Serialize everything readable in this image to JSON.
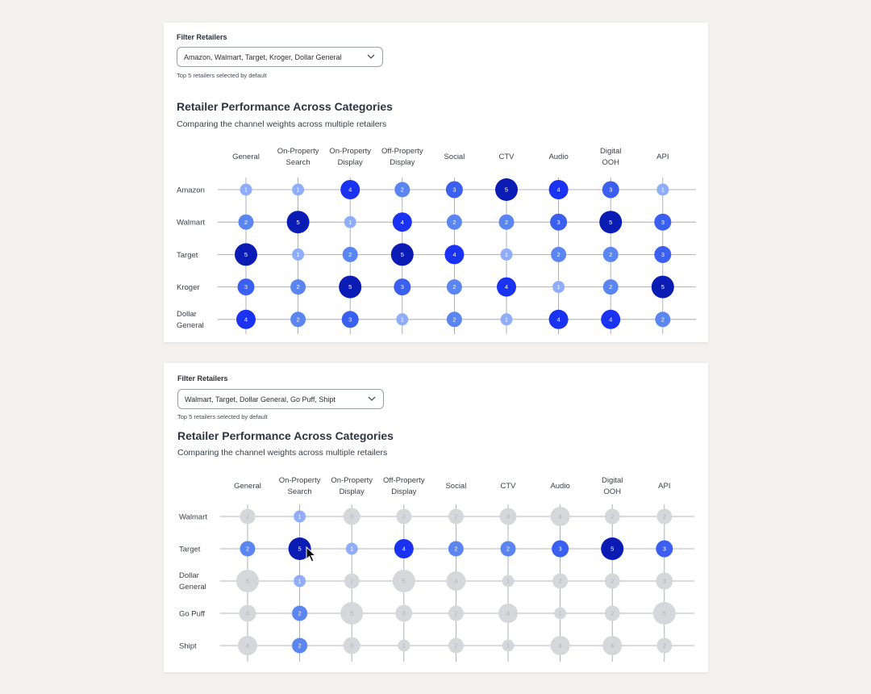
{
  "panels": [
    {
      "filter_label": "Filter Retailers",
      "filter_value": "Amazon, Walmart, Target, Kroger, Dollar General",
      "helper_text": "Top 5 retailers selected by default",
      "title": "Retailer Performance Across Categories",
      "subtitle": "Comparing the channel weights across multiple retailers"
    },
    {
      "filter_label": "Filter Retailers",
      "filter_value": "Walmart, Target, Dollar General, Go Puff, Shipt",
      "helper_text": "Top 5 retailers selected by default",
      "title": "Retailer Performance Across Categories",
      "subtitle": "Comparing the channel weights across multiple retailers"
    }
  ],
  "icons": {
    "dropdown": "chevron-down-icon",
    "pointer": "mouse-pointer-icon"
  },
  "colors": {
    "1": "#8fadfa",
    "2": "#5b86f2",
    "3": "#3b5ff0",
    "4": "#1a32f2",
    "5": "#0b1cb4",
    "dimmed": "#d5d7db",
    "dimmed_text": "#aeb1b7",
    "grid": "#9a9ea6"
  },
  "chart_data": [
    {
      "type": "scatter",
      "categories": [
        [
          "General"
        ],
        [
          "On-Property",
          "Search"
        ],
        [
          "On-Property",
          "Display"
        ],
        [
          "Off-Property",
          "Display"
        ],
        [
          "Social"
        ],
        [
          "CTV"
        ],
        [
          "Audio"
        ],
        [
          "Digital",
          "OOH"
        ],
        [
          "API"
        ]
      ],
      "rows": [
        {
          "name": [
            "Amazon"
          ],
          "values": [
            1,
            1,
            4,
            2,
            3,
            5,
            4,
            3,
            1
          ]
        },
        {
          "name": [
            "Walmart"
          ],
          "values": [
            2,
            5,
            1,
            4,
            2,
            2,
            3,
            5,
            3
          ]
        },
        {
          "name": [
            "Target"
          ],
          "values": [
            5,
            1,
            2,
            5,
            4,
            1,
            2,
            2,
            3
          ]
        },
        {
          "name": [
            "Kroger"
          ],
          "values": [
            3,
            2,
            5,
            3,
            2,
            4,
            1,
            2,
            5
          ]
        },
        {
          "name": [
            "Dollar",
            "General"
          ],
          "values": [
            4,
            2,
            3,
            1,
            2,
            1,
            4,
            4,
            2
          ]
        }
      ],
      "highlighted_row": null
    },
    {
      "type": "scatter",
      "categories": [
        [
          "General"
        ],
        [
          "On-Property",
          "Search"
        ],
        [
          "On-Property",
          "Display"
        ],
        [
          "Off-Property",
          "Display"
        ],
        [
          "Social"
        ],
        [
          "CTV"
        ],
        [
          "Audio"
        ],
        [
          "Digital",
          "OOH"
        ],
        [
          "API"
        ]
      ],
      "rows": [
        {
          "name": [
            "Walmart"
          ],
          "values": [
            2,
            1,
            3,
            2,
            2,
            3,
            4,
            2,
            2
          ]
        },
        {
          "name": [
            "Target"
          ],
          "values": [
            2,
            5,
            1,
            4,
            2,
            2,
            3,
            5,
            3
          ]
        },
        {
          "name": [
            "Dollar",
            "General"
          ],
          "values": [
            5,
            1,
            2,
            5,
            4,
            1,
            2,
            2,
            3
          ]
        },
        {
          "name": [
            "Go Puff"
          ],
          "values": [
            3,
            2,
            5,
            3,
            2,
            4,
            1,
            2,
            5
          ]
        },
        {
          "name": [
            "Shipt"
          ],
          "values": [
            4,
            2,
            3,
            1,
            2,
            1,
            4,
            4,
            2
          ]
        }
      ],
      "highlighted_row": 1,
      "highlighted_column": 1
    }
  ]
}
